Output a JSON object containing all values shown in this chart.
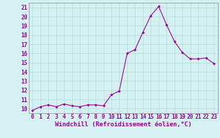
{
  "x": [
    0,
    1,
    2,
    3,
    4,
    5,
    6,
    7,
    8,
    9,
    10,
    11,
    12,
    13,
    14,
    15,
    16,
    17,
    18,
    19,
    20,
    21,
    22,
    23
  ],
  "y": [
    9.8,
    10.2,
    10.4,
    10.2,
    10.5,
    10.3,
    10.2,
    10.4,
    10.4,
    10.3,
    11.5,
    11.9,
    16.0,
    16.4,
    18.3,
    20.1,
    21.1,
    19.1,
    17.3,
    16.1,
    15.4,
    15.4,
    15.5,
    14.9
  ],
  "line_color": "#990099",
  "marker": "D",
  "marker_size": 1.8,
  "bg_color": "#d4f0f0",
  "grid_color": "#aad8d8",
  "xlabel": "Windchill (Refroidissement éolien,°C)",
  "ylabel_ticks": [
    10,
    11,
    12,
    13,
    14,
    15,
    16,
    17,
    18,
    19,
    20,
    21
  ],
  "xlim": [
    -0.5,
    23.5
  ],
  "ylim": [
    9.5,
    21.5
  ],
  "tick_label_color": "#990099",
  "xlabel_fontsize": 6.5,
  "tick_fontsize": 5.8,
  "spine_color": "#888888",
  "linewidth": 0.8
}
